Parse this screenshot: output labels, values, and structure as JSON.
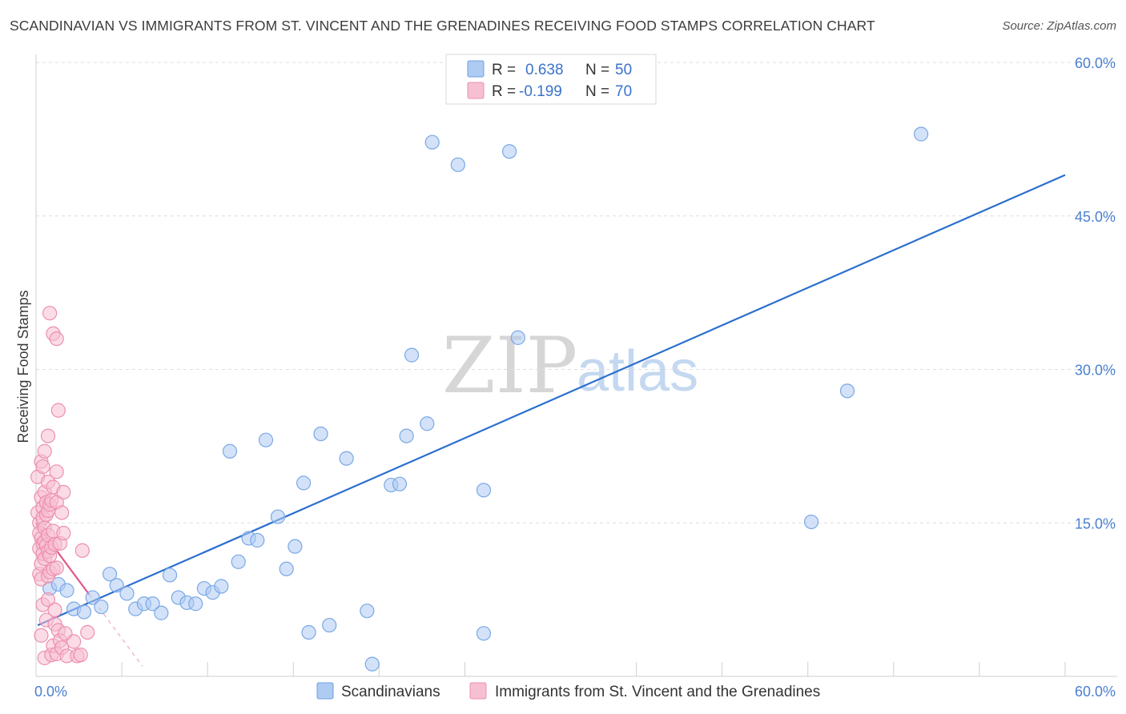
{
  "header": {
    "title": "SCANDINAVIAN VS IMMIGRANTS FROM ST. VINCENT AND THE GRENADINES RECEIVING FOOD STAMPS CORRELATION CHART",
    "source": "Source: ZipAtlas.com"
  },
  "watermark": {
    "zip": "ZIP",
    "atlas": "atlas"
  },
  "legend": {
    "rows": [
      {
        "r_label": "R =",
        "r_value": "0.638",
        "n_label": "N =",
        "n_value": "50",
        "fill": "#aecbf2",
        "stroke": "#6f9fe0"
      },
      {
        "r_label": "R =",
        "r_value": "-0.199",
        "n_label": "N =",
        "n_value": "70",
        "fill": "#f7bfd2",
        "stroke": "#ec8fb0"
      }
    ]
  },
  "chart_data": {
    "type": "scatter",
    "title": "SCANDINAVIAN VS IMMIGRANTS FROM ST. VINCENT AND THE GRENADINES RECEIVING FOOD STAMPS CORRELATION CHART",
    "xlabel": "",
    "ylabel": "Receiving Food Stamps",
    "xlim": [
      0,
      60
    ],
    "ylim": [
      0,
      60
    ],
    "x_tick_labels": [
      "0.0%",
      "60.0%"
    ],
    "y_ticks": [
      15,
      30,
      45,
      60
    ],
    "y_tick_labels": [
      "15.0%",
      "30.0%",
      "45.0%",
      "60.0%"
    ],
    "grid": true,
    "series": [
      {
        "name": "Scandinavians",
        "color": "#7aa8e6",
        "fill": "#aecbf2",
        "line_color": "#2a6fcf",
        "trend": {
          "x": [
            0.1,
            60
          ],
          "y": [
            5.0,
            49.0
          ],
          "dashed_x": []
        },
        "points": [
          [
            0.8,
            8.6
          ],
          [
            1.3,
            9.0
          ],
          [
            1.8,
            8.4
          ],
          [
            2.2,
            6.6
          ],
          [
            2.8,
            6.3
          ],
          [
            3.3,
            7.7
          ],
          [
            3.8,
            6.8
          ],
          [
            4.3,
            10.0
          ],
          [
            4.7,
            8.9
          ],
          [
            5.3,
            8.1
          ],
          [
            5.8,
            6.6
          ],
          [
            6.3,
            7.1
          ],
          [
            6.8,
            7.1
          ],
          [
            7.3,
            6.2
          ],
          [
            7.8,
            9.9
          ],
          [
            8.3,
            7.7
          ],
          [
            8.8,
            7.2
          ],
          [
            9.3,
            7.1
          ],
          [
            9.8,
            8.6
          ],
          [
            10.3,
            8.2
          ],
          [
            10.8,
            8.8
          ],
          [
            11.3,
            22.0
          ],
          [
            11.8,
            11.2
          ],
          [
            12.4,
            13.5
          ],
          [
            12.9,
            13.3
          ],
          [
            13.4,
            23.1
          ],
          [
            14.1,
            15.6
          ],
          [
            14.6,
            10.5
          ],
          [
            15.1,
            12.7
          ],
          [
            15.6,
            18.9
          ],
          [
            15.9,
            4.3
          ],
          [
            16.6,
            23.7
          ],
          [
            17.1,
            5.0
          ],
          [
            18.1,
            21.3
          ],
          [
            19.3,
            6.4
          ],
          [
            19.6,
            1.2
          ],
          [
            20.7,
            18.7
          ],
          [
            21.2,
            18.8
          ],
          [
            21.9,
            31.4
          ],
          [
            22.8,
            24.7
          ],
          [
            23.1,
            52.2
          ],
          [
            24.6,
            50.0
          ],
          [
            26.1,
            18.2
          ],
          [
            26.1,
            4.2
          ],
          [
            27.6,
            51.3
          ],
          [
            28.1,
            33.1
          ],
          [
            45.2,
            15.1
          ],
          [
            47.3,
            27.9
          ],
          [
            51.6,
            53.0
          ],
          [
            21.6,
            23.5
          ]
        ]
      },
      {
        "name": "Immigrants from St. Vincent and the Grenadines",
        "color": "#ec8fb0",
        "fill": "#f7bfd2",
        "line_color": "#e0568a",
        "trend": {
          "x": [
            0.0,
            3.1
          ],
          "y": [
            15.0,
            8.0
          ],
          "dashed_x": [
            3.1,
            6.2
          ]
        },
        "points": [
          [
            0.1,
            19.5
          ],
          [
            0.1,
            16.0
          ],
          [
            0.2,
            15.0
          ],
          [
            0.2,
            14.0
          ],
          [
            0.2,
            12.5
          ],
          [
            0.2,
            10.0
          ],
          [
            0.3,
            21.0
          ],
          [
            0.3,
            17.5
          ],
          [
            0.3,
            13.5
          ],
          [
            0.3,
            11.0
          ],
          [
            0.3,
            9.5
          ],
          [
            0.3,
            4.0
          ],
          [
            0.4,
            20.5
          ],
          [
            0.4,
            16.5
          ],
          [
            0.4,
            15.5
          ],
          [
            0.4,
            13.0
          ],
          [
            0.4,
            12.0
          ],
          [
            0.4,
            7.0
          ],
          [
            0.5,
            22.0
          ],
          [
            0.5,
            18.0
          ],
          [
            0.5,
            14.5
          ],
          [
            0.5,
            13.2
          ],
          [
            0.5,
            11.5
          ],
          [
            0.5,
            1.8
          ],
          [
            0.6,
            17.0
          ],
          [
            0.6,
            15.8
          ],
          [
            0.6,
            12.8
          ],
          [
            0.6,
            5.5
          ],
          [
            0.7,
            23.5
          ],
          [
            0.7,
            19.0
          ],
          [
            0.7,
            16.2
          ],
          [
            0.7,
            13.8
          ],
          [
            0.7,
            12.2
          ],
          [
            0.7,
            9.8
          ],
          [
            0.7,
            7.5
          ],
          [
            0.8,
            35.5
          ],
          [
            0.8,
            16.8
          ],
          [
            0.8,
            11.8
          ],
          [
            0.8,
            10.2
          ],
          [
            0.9,
            17.2
          ],
          [
            0.9,
            12.6
          ],
          [
            0.9,
            2.1
          ],
          [
            1.0,
            33.5
          ],
          [
            1.0,
            18.5
          ],
          [
            1.0,
            14.2
          ],
          [
            1.0,
            10.5
          ],
          [
            1.0,
            3.0
          ],
          [
            1.1,
            12.9
          ],
          [
            1.1,
            6.5
          ],
          [
            1.1,
            5.1
          ],
          [
            1.2,
            33.0
          ],
          [
            1.2,
            20.0
          ],
          [
            1.2,
            17.0
          ],
          [
            1.2,
            10.6
          ],
          [
            1.2,
            2.2
          ],
          [
            1.3,
            26.0
          ],
          [
            1.3,
            4.5
          ],
          [
            1.4,
            13.0
          ],
          [
            1.4,
            3.5
          ],
          [
            1.5,
            16.0
          ],
          [
            1.5,
            2.8
          ],
          [
            1.6,
            18.0
          ],
          [
            1.6,
            14.0
          ],
          [
            1.7,
            4.2
          ],
          [
            1.8,
            2.0
          ],
          [
            2.2,
            3.4
          ],
          [
            2.4,
            2.0
          ],
          [
            2.6,
            2.1
          ],
          [
            2.7,
            12.3
          ],
          [
            3.0,
            4.3
          ]
        ]
      }
    ]
  },
  "bottom_legend": {
    "items": [
      {
        "label": "Scandinavians",
        "fill": "#aecbf2",
        "stroke": "#6f9fe0"
      },
      {
        "label": "Immigrants from St. Vincent and the Grenadines",
        "fill": "#f7bfd2",
        "stroke": "#ec8fb0"
      }
    ]
  }
}
